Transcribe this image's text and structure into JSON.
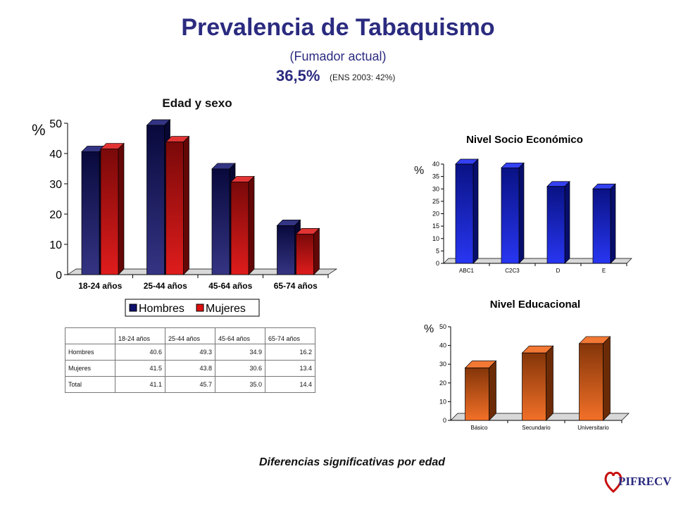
{
  "header": {
    "title": "Prevalencia de Tabaquismo",
    "subtitle": "(Fumador actual)",
    "headline_value": "36,5%",
    "headline_note": "(ENS 2003: 42%)"
  },
  "footer_note": "Diferencias significativas por edad",
  "logo_text": "PIFRECV",
  "colors": {
    "title": "#2b2b80",
    "hombres": "#10106e",
    "mujeres": "#dd1010",
    "nse": "#1020f0",
    "edu": "#f06010"
  },
  "chart_data": [
    {
      "id": "edad",
      "type": "bar",
      "title": "Edad y sexo",
      "ylabel": "%",
      "categories": [
        "18-24 años",
        "25-44 años",
        "45-64 años",
        "65-74 años"
      ],
      "series": [
        {
          "name": "Hombres",
          "values": [
            40.6,
            49.3,
            34.9,
            16.2
          ]
        },
        {
          "name": "Mujeres",
          "values": [
            41.5,
            43.8,
            30.6,
            13.4
          ]
        }
      ],
      "ylim": [
        0,
        50
      ],
      "yticks": [
        "0",
        "10",
        "20",
        "30",
        "40",
        "50"
      ],
      "legend": "bottom"
    },
    {
      "id": "nse",
      "type": "bar",
      "title": "Nivel Socio Económico",
      "ylabel": "%",
      "categories": [
        "ABC1",
        "C2C3",
        "D",
        "E"
      ],
      "values": [
        40,
        38.5,
        31,
        30
      ],
      "ylim": [
        0,
        40
      ],
      "yticks": [
        "0",
        "5",
        "10",
        "15",
        "20",
        "25",
        "30",
        "35",
        "40"
      ]
    },
    {
      "id": "edu",
      "type": "bar",
      "title": "Nivel Educacional",
      "ylabel": "%",
      "categories": [
        "Básico",
        "Secundario",
        "Universitario"
      ],
      "values": [
        28,
        36,
        41
      ],
      "ylim": [
        0,
        50
      ],
      "yticks": [
        "0",
        "10",
        "20",
        "30",
        "40",
        "50"
      ]
    },
    {
      "id": "tabla",
      "type": "table",
      "columns": [
        "18-24 años",
        "25-44 años",
        "45-64 años",
        "65-74 años"
      ],
      "rows": [
        {
          "label": "Hombres",
          "values": [
            "40.6",
            "49.3",
            "34.9",
            "16.2"
          ]
        },
        {
          "label": "Mujeres",
          "values": [
            "41.5",
            "43.8",
            "30.6",
            "13.4"
          ]
        },
        {
          "label": "Total",
          "values": [
            "41.1",
            "45.7",
            "35.0",
            "14.4"
          ]
        }
      ]
    }
  ]
}
